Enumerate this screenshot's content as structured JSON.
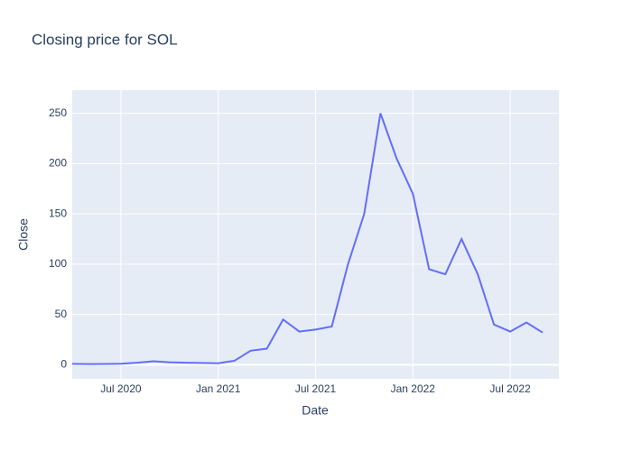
{
  "chart_data": {
    "type": "line",
    "title": "Closing price for SOL",
    "x_label": "Date",
    "y_label": "Close",
    "x": [
      "2020-04",
      "2020-05",
      "2020-06",
      "2020-07",
      "2020-08",
      "2020-09",
      "2020-10",
      "2020-11",
      "2020-12",
      "2021-01",
      "2021-02",
      "2021-03",
      "2021-04",
      "2021-05",
      "2021-06",
      "2021-07",
      "2021-08",
      "2021-09",
      "2021-10",
      "2021-11",
      "2021-12",
      "2022-01",
      "2022-02",
      "2022-03",
      "2022-04",
      "2022-05",
      "2022-06",
      "2022-07",
      "2022-08",
      "2022-09"
    ],
    "series": [
      {
        "name": "Close",
        "color": "#636efa",
        "values": [
          0.9,
          0.7,
          0.8,
          1,
          2,
          3.5,
          2.5,
          2,
          1.8,
          1.5,
          4,
          14,
          16,
          45,
          33,
          35,
          38,
          100,
          150,
          250,
          205,
          170,
          95,
          90,
          125,
          90,
          40,
          33,
          42,
          32
        ]
      }
    ],
    "xlim": [
      "2020-04",
      "2022-10"
    ],
    "xticks": [
      {
        "value": "2020-07",
        "label": "Jul 2020"
      },
      {
        "value": "2021-01",
        "label": "Jan 2021"
      },
      {
        "value": "2021-07",
        "label": "Jul 2021"
      },
      {
        "value": "2022-01",
        "label": "Jan 2022"
      },
      {
        "value": "2022-07",
        "label": "Jul 2022"
      }
    ],
    "ylim": [
      -14,
      273
    ],
    "yticks": [
      0,
      50,
      100,
      150,
      200,
      250
    ],
    "grid": true
  }
}
